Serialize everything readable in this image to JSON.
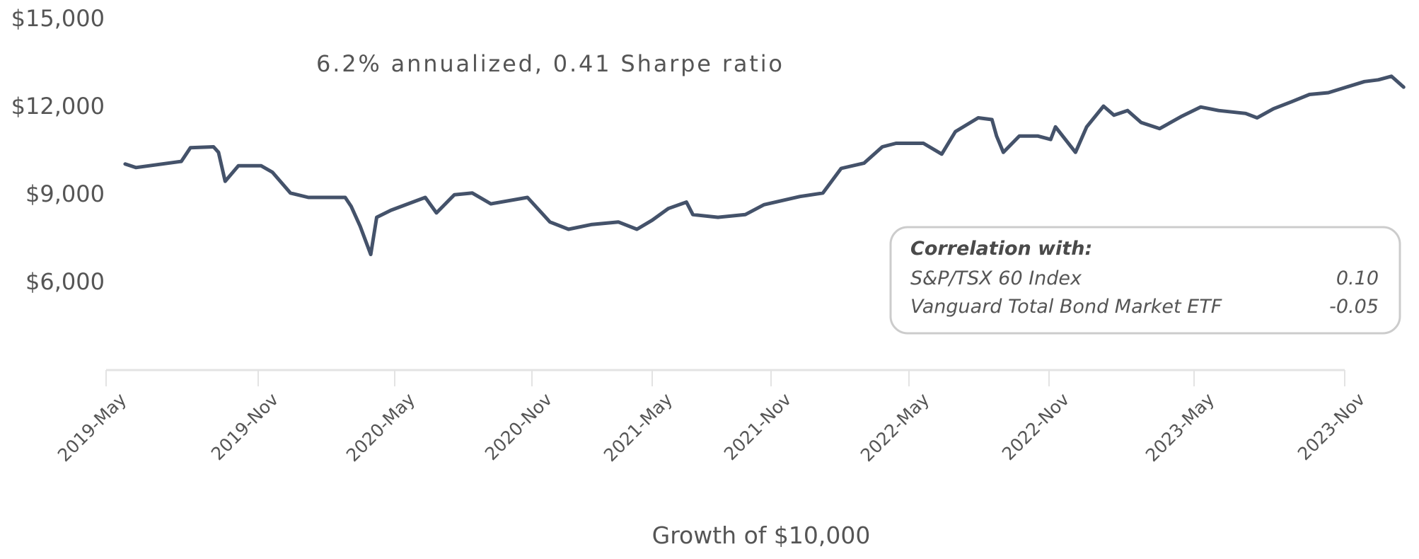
{
  "chart_data": {
    "type": "line",
    "title": "",
    "annotation": "6.2% annualized, 0.41 Sharpe ratio",
    "xlabel": "Growth of $10,000",
    "ylabel": "",
    "ylim": [
      3000,
      15000
    ],
    "y_ticks": [
      {
        "value": 15000,
        "label": "$15,000"
      },
      {
        "value": 12000,
        "label": "$12,000"
      },
      {
        "value": 9000,
        "label": "$9,000"
      },
      {
        "value": 6000,
        "label": "$6,000"
      }
    ],
    "x_ticks": [
      {
        "date": "2019-05-01",
        "label": "2019-May"
      },
      {
        "date": "2019-11-01",
        "label": "2019-Nov"
      },
      {
        "date": "2020-05-01",
        "label": "2020-May"
      },
      {
        "date": "2020-11-01",
        "label": "2020-Nov"
      },
      {
        "date": "2021-05-01",
        "label": "2021-May"
      },
      {
        "date": "2021-11-01",
        "label": "2021-Nov"
      },
      {
        "date": "2022-05-01",
        "label": "2022-May"
      },
      {
        "date": "2022-11-01",
        "label": "2022-Nov"
      },
      {
        "date": "2023-05-01",
        "label": "2023-May"
      },
      {
        "date": "2023-11-01",
        "label": "2023-Nov"
      }
    ],
    "grid": false,
    "line_color": "#44526a",
    "series": [
      {
        "x": [
          "2019-05-24",
          "2019-06-06",
          "2019-07-31",
          "2019-08-11",
          "2019-09-08",
          "2019-09-14",
          "2019-09-22",
          "2019-10-08",
          "2019-11-05",
          "2019-11-20",
          "2019-12-14",
          "2020-01-07",
          "2020-02-25",
          "2020-03-04",
          "2020-03-16",
          "2020-03-30",
          "2020-04-07",
          "2020-04-26",
          "2020-06-11",
          "2020-06-26",
          "2020-07-20",
          "2020-08-13",
          "2020-09-07",
          "2020-10-26",
          "2020-11-28",
          "2020-12-26",
          "2021-01-29",
          "2021-03-11",
          "2021-04-08",
          "2021-05-01",
          "2021-05-26",
          "2021-06-23",
          "2021-07-03",
          "2021-08-11",
          "2021-09-22",
          "2021-10-21",
          "2021-12-09",
          "2022-01-08",
          "2022-02-01",
          "2022-03-03",
          "2022-03-27",
          "2022-04-14",
          "2022-05-20",
          "2022-06-13",
          "2022-07-01",
          "2022-07-31",
          "2022-08-18",
          "2022-08-24",
          "2022-09-02",
          "2022-09-23",
          "2022-10-17",
          "2022-11-03",
          "2022-11-09",
          "2022-12-04",
          "2022-12-18",
          "2023-01-08",
          "2023-01-21",
          "2023-02-07",
          "2023-02-24",
          "2023-03-19",
          "2023-04-16",
          "2023-05-09",
          "2023-05-31",
          "2023-07-03",
          "2023-07-17",
          "2023-08-06",
          "2023-08-28",
          "2023-09-19",
          "2023-10-12",
          "2023-11-03",
          "2023-11-25",
          "2023-12-12",
          "2023-12-28",
          "2024-01-12"
        ],
        "y": [
          10020,
          9900,
          10110,
          10580,
          10610,
          10420,
          9430,
          9960,
          9960,
          9740,
          9030,
          8880,
          8880,
          8570,
          7890,
          6930,
          8200,
          8440,
          8880,
          8350,
          8970,
          9030,
          8660,
          8880,
          8040,
          7790,
          7950,
          8040,
          7790,
          8100,
          8500,
          8720,
          8290,
          8200,
          8290,
          8630,
          8910,
          9030,
          9870,
          10050,
          10610,
          10730,
          10730,
          10360,
          11130,
          11600,
          11540,
          10980,
          10420,
          10980,
          10980,
          10860,
          11290,
          10420,
          11290,
          12000,
          11690,
          11850,
          11440,
          11230,
          11660,
          11970,
          11850,
          11750,
          11600,
          11910,
          12150,
          12400,
          12460,
          12650,
          12840,
          12900,
          13020,
          12650
        ]
      }
    ]
  },
  "correlation_box": {
    "title": "Correlation with:",
    "rows": [
      {
        "label": "S&P/TSX 60 Index",
        "value": "0.10"
      },
      {
        "label": "Vanguard Total Bond Market ETF",
        "value": "-0.05"
      }
    ]
  }
}
